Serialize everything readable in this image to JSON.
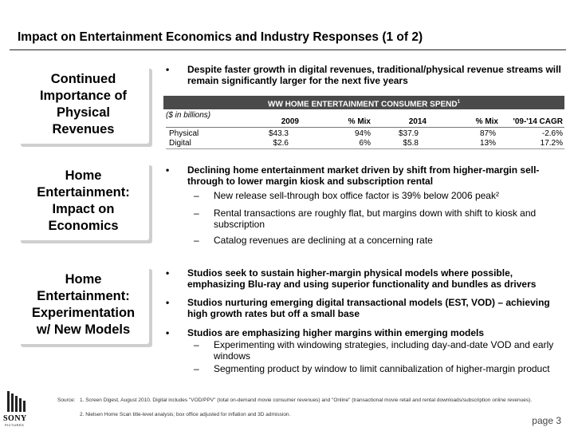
{
  "title": "Impact on Entertainment Economics and Industry Responses (1 of 2)",
  "boxes": [
    {
      "lines": [
        "Continued",
        "Importance of",
        "Physical",
        "Revenues"
      ]
    },
    {
      "lines": [
        "Home",
        "Entertainment:",
        "Impact on",
        "Economics"
      ]
    },
    {
      "lines": [
        "Home",
        "Entertainment:",
        "Experimentation",
        "w/ New Models"
      ]
    }
  ],
  "section1": {
    "bullet": "Despite faster growth in digital revenues, traditional/physical revenue streams will remain significantly larger for the next five years",
    "table": {
      "title": "WW HOME ENTERTAINMENT CONSUMER SPEND",
      "title_sup": "1",
      "unit": "($ in billions)",
      "columns": [
        "2009",
        "% Mix",
        "2014",
        "% Mix",
        "'09-'14 CAGR"
      ],
      "rows": [
        {
          "label": "Physical",
          "values": [
            "$43.3",
            "94%",
            "$37.9",
            "87%",
            "-2.6%"
          ]
        },
        {
          "label": "Digital",
          "values": [
            "$2.6",
            "6%",
            "$5.8",
            "13%",
            "17.2%"
          ]
        }
      ]
    }
  },
  "section2": {
    "bullet": "Declining home entertainment market driven by shift from higher-margin sell-through to lower margin kiosk and subscription rental",
    "subs": [
      "New release sell-through box office factor is 39% below 2006 peak²",
      "Rental transactions are roughly flat, but margins down with shift to kiosk and subscription",
      "Catalog revenues are declining at a concerning rate"
    ]
  },
  "section3": {
    "bullets": [
      "Studios seek to sustain higher-margin physical models where possible, emphasizing Blu-ray and using superior functionality and bundles as drivers",
      "Studios nurturing emerging digital transactional models (EST, VOD) – achieving high growth rates but off a small base",
      "Studios are emphasizing higher margins within emerging models"
    ],
    "subs": [
      "Experimenting with windowing strategies, including day-and-date VOD and early windows",
      "Segmenting product by window to limit cannibalization of higher-margin product"
    ]
  },
  "bullet_char": "•",
  "dash_char": "–",
  "source": {
    "label": "Source:",
    "line1": "1. Screen Digest, August 2010. Digital includes \"VOD/PPV\" (total on-demand movie consumer revenues) and \"Online\" (transactional movie retail and rental downloads/subscription online revenues).",
    "line2": "2. Nielsen Home Scan title-level analysis; box office adjusted for inflation and 3D admission."
  },
  "page": "page 3",
  "logo": {
    "brand": "SONY",
    "sub": "PICTURES"
  },
  "colors": {
    "table_header_bg": "#4a4a4a",
    "box_shadow": "#cfcfcf"
  }
}
